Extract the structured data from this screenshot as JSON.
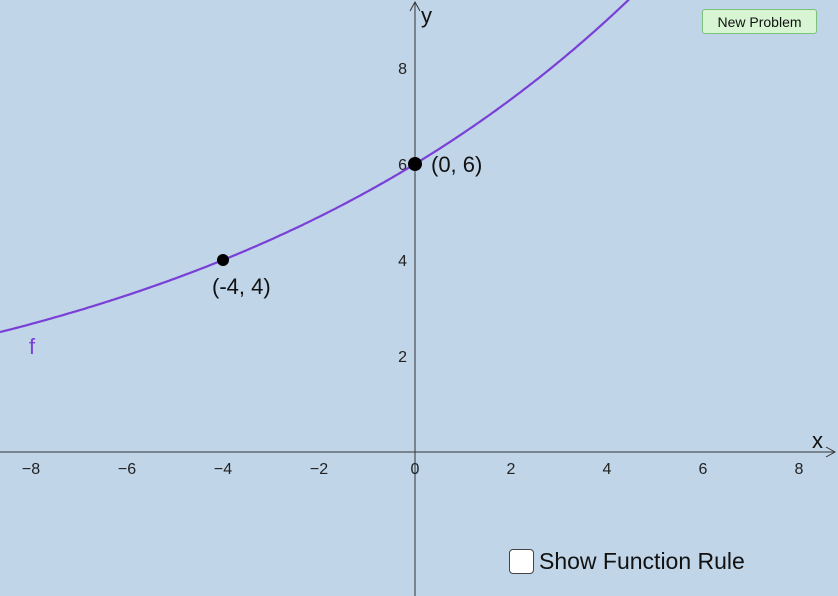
{
  "graph": {
    "x_axis_label": "x",
    "y_axis_label": "y",
    "x_ticks": [
      -8,
      -6,
      -4,
      -2,
      0,
      2,
      4,
      6,
      8
    ],
    "x_tick_labels": [
      "−8",
      "−6",
      "−4",
      "−2",
      "0",
      "2",
      "4",
      "6",
      "8"
    ],
    "y_ticks": [
      2,
      4,
      6,
      8
    ],
    "y_tick_labels": [
      "2",
      "4",
      "6",
      "8"
    ],
    "x_range": [
      -8.65,
      8.85
    ],
    "y_range": [
      -1.5,
      9.4
    ],
    "function": {
      "name": "f",
      "color": "#7a3fd6",
      "form": "exponential",
      "initial_value": 6,
      "growth_factor_per_unit": 1.1067
    },
    "points": [
      {
        "x": -4,
        "y": 4,
        "label": "(-4, 4)"
      },
      {
        "x": 0,
        "y": 6,
        "label": "(0, 6)"
      }
    ]
  },
  "controls": {
    "new_problem_label": "New Problem",
    "show_rule_label": "Show Function Rule",
    "show_rule_checked": false
  }
}
